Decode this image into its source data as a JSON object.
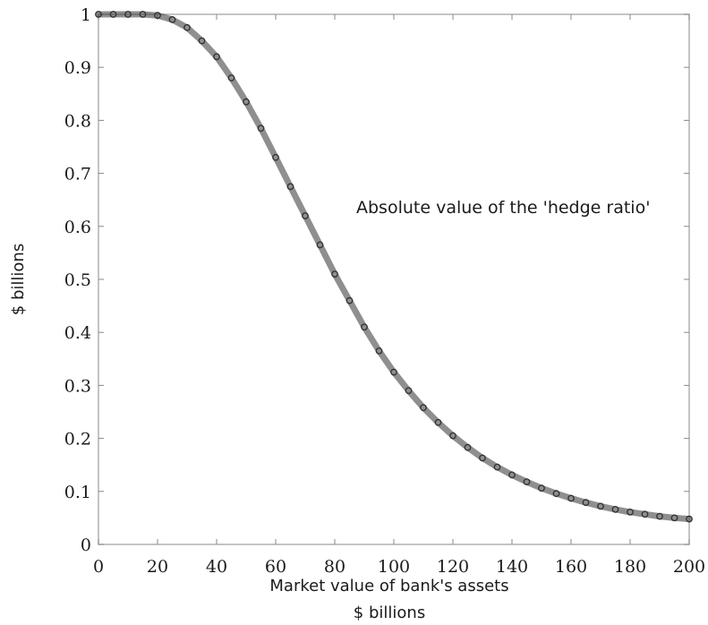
{
  "chart_data": {
    "type": "scatter",
    "title": "",
    "xlabel": "Market value of bank's assets",
    "xlabel_units": "$ billions",
    "ylabel": "$ billions",
    "annotation": "Absolute value of the 'hedge ratio'",
    "xlim": [
      0,
      200
    ],
    "ylim": [
      0,
      1
    ],
    "xticks": [
      "0",
      "20",
      "40",
      "60",
      "80",
      "100",
      "120",
      "140",
      "160",
      "180",
      "200"
    ],
    "yticks": [
      "0",
      "0.1",
      "0.2",
      "0.3",
      "0.4",
      "0.5",
      "0.6",
      "0.7",
      "0.8",
      "0.9",
      "1"
    ],
    "grid": false,
    "series": [
      {
        "color": "#333333",
        "x": [
          0,
          5,
          10,
          15,
          20,
          25,
          30,
          35,
          40,
          45,
          50,
          55,
          60,
          65,
          70,
          75,
          80,
          85,
          90,
          95,
          100,
          105,
          110,
          115,
          120,
          125,
          130,
          135,
          140,
          145,
          150,
          155,
          160,
          165,
          170,
          175,
          180,
          185,
          190,
          195,
          200
        ],
        "y": [
          1.0,
          1.0,
          1.0,
          1.0,
          0.998,
          0.99,
          0.975,
          0.95,
          0.92,
          0.88,
          0.835,
          0.785,
          0.73,
          0.675,
          0.62,
          0.565,
          0.51,
          0.46,
          0.41,
          0.365,
          0.325,
          0.29,
          0.258,
          0.23,
          0.205,
          0.183,
          0.163,
          0.146,
          0.131,
          0.118,
          0.106,
          0.096,
          0.087,
          0.079,
          0.072,
          0.066,
          0.061,
          0.057,
          0.053,
          0.05,
          0.048
        ]
      }
    ]
  }
}
